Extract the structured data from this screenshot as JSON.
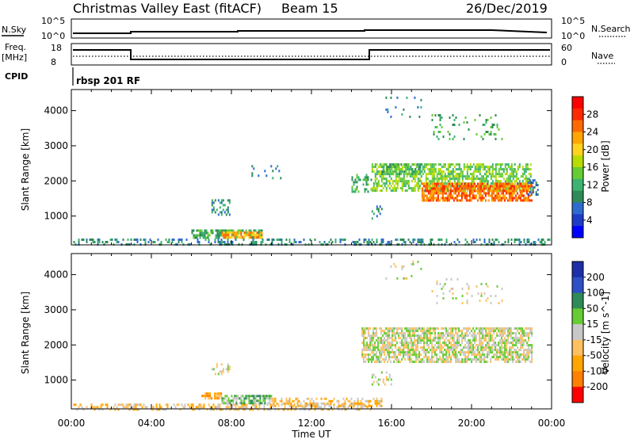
{
  "header": {
    "title": "Christmas Valley East (fitACF)",
    "beam": "Beam 15",
    "date": "26/Dec/2019"
  },
  "top_panels": {
    "nsky_label": "N.Sky",
    "nsky_ticks": [
      "10^5",
      "10^0"
    ],
    "nsearch_label": "N.Search",
    "nsearch_ticks": [
      "10^5",
      "10^0"
    ],
    "freq_label_1": "Freq.",
    "freq_label_2": "[MHz]",
    "freq_ticks": [
      "18",
      "8"
    ],
    "nave_label": "Nave",
    "nave_ticks": [
      "60",
      "0"
    ],
    "cpid_label": "CPID",
    "cpid_value": "rbsp 201 RF"
  },
  "chart_data": [
    {
      "type": "heatmap",
      "name": "power-panel",
      "xlabel": "",
      "ylabel": "Slant Range [km]",
      "x_ticks": [
        "00:00",
        "04:00",
        "08:00",
        "12:00",
        "16:00",
        "20:00",
        "00:00"
      ],
      "y_ticks": [
        1000,
        2000,
        3000,
        4000
      ],
      "ylim": [
        180,
        4600
      ],
      "xlim_hours": [
        0,
        24
      ],
      "colorbar": {
        "label": "Power [dB]",
        "ticks": [
          4,
          8,
          12,
          16,
          20,
          24,
          28
        ],
        "colors": [
          "#0000ff",
          "#1e3cc8",
          "#2e6bd0",
          "#2e8b57",
          "#3cb371",
          "#66cc33",
          "#b8dc00",
          "#ffd21e",
          "#ffa500",
          "#ff6a00",
          "#ff2a00",
          "#ff0000"
        ]
      },
      "regions": [
        {
          "t0": 0.1,
          "t1": 23.9,
          "r0": 180,
          "r1": 360,
          "density": 0.35,
          "level": 3
        },
        {
          "t0": 6.0,
          "t1": 9.5,
          "r0": 360,
          "r1": 620,
          "density": 0.7,
          "level": 4
        },
        {
          "t0": 7.5,
          "t1": 9.5,
          "r0": 400,
          "r1": 560,
          "density": 0.8,
          "level": 8
        },
        {
          "t0": 7.0,
          "t1": 7.9,
          "r0": 1050,
          "r1": 1480,
          "density": 0.35,
          "level": 3
        },
        {
          "t0": 9.0,
          "t1": 10.5,
          "r0": 2050,
          "r1": 2450,
          "density": 0.15,
          "level": 3
        },
        {
          "t0": 14.0,
          "t1": 15.0,
          "r0": 1700,
          "r1": 2200,
          "density": 0.35,
          "level": 4
        },
        {
          "t0": 15.0,
          "t1": 15.5,
          "r0": 900,
          "r1": 1300,
          "density": 0.3,
          "level": 3
        },
        {
          "t0": 15.0,
          "t1": 23.0,
          "r0": 1700,
          "r1": 2500,
          "density": 0.65,
          "level": 5
        },
        {
          "t0": 15.5,
          "t1": 17.5,
          "r0": 2200,
          "r1": 2500,
          "density": 0.55,
          "level": 4
        },
        {
          "t0": 17.5,
          "t1": 23.0,
          "r0": 1450,
          "r1": 1950,
          "density": 0.75,
          "level": 9
        },
        {
          "t0": 15.7,
          "t1": 17.5,
          "r0": 3800,
          "r1": 4400,
          "density": 0.07,
          "level": 3
        },
        {
          "t0": 18.0,
          "t1": 21.5,
          "r0": 3200,
          "r1": 3900,
          "density": 0.12,
          "level": 4
        },
        {
          "t0": 22.8,
          "t1": 23.3,
          "r0": 1600,
          "r1": 2050,
          "density": 0.3,
          "level": 2
        }
      ]
    },
    {
      "type": "heatmap",
      "name": "velocity-panel",
      "xlabel": "Time UT",
      "ylabel": "Slant Range [km]",
      "x_ticks": [
        "00:00",
        "04:00",
        "08:00",
        "12:00",
        "16:00",
        "20:00",
        "00:00"
      ],
      "y_ticks": [
        1000,
        2000,
        3000,
        4000
      ],
      "ylim": [
        180,
        4600
      ],
      "xlim_hours": [
        0,
        24
      ],
      "colorbar": {
        "label": "Velocity [m s^-1]",
        "ticks": [
          200,
          100,
          50,
          15,
          -15,
          -50,
          -100,
          -200
        ],
        "colors": [
          "#1c2fa8",
          "#2e4fc8",
          "#2e8b57",
          "#66cc33",
          "#c8c8c8",
          "#ffc060",
          "#ffa500",
          "#ff7f00",
          "#ff0000"
        ]
      },
      "regions": [
        {
          "t0": 0.1,
          "t1": 15.0,
          "r0": 180,
          "r1": 330,
          "density": 0.4,
          "level": 5
        },
        {
          "t0": 6.5,
          "t1": 7.5,
          "r0": 450,
          "r1": 650,
          "density": 0.7,
          "level": 6
        },
        {
          "t0": 7.5,
          "t1": 10.0,
          "r0": 330,
          "r1": 580,
          "density": 0.7,
          "level": 3
        },
        {
          "t0": 10.0,
          "t1": 15.5,
          "r0": 230,
          "r1": 500,
          "density": 0.5,
          "level": 5
        },
        {
          "t0": 14.5,
          "t1": 23.0,
          "r0": 1500,
          "r1": 2500,
          "density": 0.7,
          "level": 4
        },
        {
          "t0": 15.0,
          "t1": 16.0,
          "r0": 900,
          "r1": 1250,
          "density": 0.3,
          "level": 4
        },
        {
          "t0": 7.0,
          "t1": 7.9,
          "r0": 1200,
          "r1": 1480,
          "density": 0.3,
          "level": 4
        },
        {
          "t0": 18.0,
          "t1": 21.5,
          "r0": 3200,
          "r1": 3900,
          "density": 0.1,
          "level": 4
        },
        {
          "t0": 15.7,
          "t1": 17.5,
          "r0": 3900,
          "r1": 4400,
          "density": 0.05,
          "level": 4
        }
      ]
    }
  ],
  "time_axis_label": "Time UT",
  "colors": {
    "axis": "#000000",
    "line": "#000000"
  }
}
